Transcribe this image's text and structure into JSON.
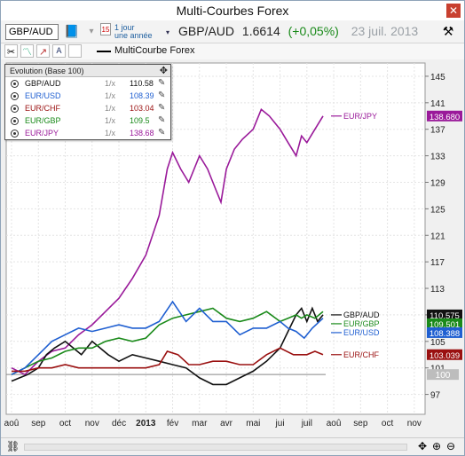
{
  "window": {
    "title": "Multi-Courbes Forex",
    "close_glyph": "✕"
  },
  "toolbar": {
    "symbol_value": "GBP/AUD",
    "period_day": "15",
    "period_line1": "1 jour",
    "period_line2": "une année",
    "quote_symbol": "GBP/AUD",
    "quote_price": "1.6614",
    "quote_change": "(+0,05%)",
    "quote_date": "23 juil. 2013"
  },
  "toolbar2": {
    "legend_label": "MultiCourbe Forex"
  },
  "evolution_panel": {
    "title": "Evolution (Base 100)",
    "rows": [
      {
        "name": "GBP/AUD",
        "scale": "1/x",
        "value": "110.58",
        "color": "#111111"
      },
      {
        "name": "EUR/USD",
        "scale": "1/x",
        "value": "108.39",
        "color": "#1f5fd1"
      },
      {
        "name": "EUR/CHF",
        "scale": "1/x",
        "value": "103.04",
        "color": "#9a1010"
      },
      {
        "name": "EUR/GBP",
        "scale": "1/x",
        "value": "109.5",
        "color": "#1a8a1a"
      },
      {
        "name": "EUR/JPY",
        "scale": "1/x",
        "value": "138.68",
        "color": "#9a1a9a"
      }
    ]
  },
  "chart_data": {
    "type": "line",
    "title": "",
    "xlabel": "",
    "ylabel": "",
    "ylim": [
      94,
      147
    ],
    "y_ticks": [
      "97",
      "101",
      "105",
      "109",
      "113",
      "117",
      "121",
      "125",
      "129",
      "133",
      "137",
      "141",
      "145"
    ],
    "x_ticks": [
      "aoû",
      "sep",
      "oct",
      "nov",
      "déc",
      "2013",
      "fév",
      "mar",
      "avr",
      "mai",
      "jui",
      "juil",
      "aoû",
      "sep",
      "oct",
      "nov"
    ],
    "x_bold_tick": "2013",
    "baseline": 100,
    "baseline_label": "100",
    "series": [
      {
        "name": "EUR/JPY",
        "color": "#9a1a9a",
        "end_label": "138.680",
        "label_text": "EUR/JPY",
        "points": [
          [
            0,
            101
          ],
          [
            0.5,
            100
          ],
          [
            1,
            102
          ],
          [
            1.5,
            103.5
          ],
          [
            2,
            104
          ],
          [
            2.5,
            106
          ],
          [
            3,
            107.5
          ],
          [
            3.5,
            109.5
          ],
          [
            4,
            111.5
          ],
          [
            4.5,
            114.5
          ],
          [
            5,
            118
          ],
          [
            5.5,
            124
          ],
          [
            5.8,
            131
          ],
          [
            6,
            133.5
          ],
          [
            6.3,
            131
          ],
          [
            6.6,
            129
          ],
          [
            7,
            133
          ],
          [
            7.3,
            131
          ],
          [
            7.6,
            128
          ],
          [
            7.8,
            126
          ],
          [
            8,
            131
          ],
          [
            8.3,
            134
          ],
          [
            8.6,
            135.5
          ],
          [
            9,
            137
          ],
          [
            9.3,
            140
          ],
          [
            9.6,
            139
          ],
          [
            10,
            137
          ],
          [
            10.3,
            135
          ],
          [
            10.6,
            133
          ],
          [
            10.8,
            136
          ],
          [
            11,
            135
          ],
          [
            11.3,
            137
          ],
          [
            11.6,
            139
          ]
        ]
      },
      {
        "name": "GBP/AUD",
        "color": "#111111",
        "end_label": "110.575",
        "label_text": "GBP/AUD",
        "points": [
          [
            0,
            99
          ],
          [
            0.3,
            99.5
          ],
          [
            0.6,
            100
          ],
          [
            1,
            101
          ],
          [
            1.3,
            103
          ],
          [
            1.6,
            104
          ],
          [
            2,
            105
          ],
          [
            2.3,
            104
          ],
          [
            2.6,
            103
          ],
          [
            3,
            105
          ],
          [
            3.3,
            104
          ],
          [
            3.6,
            103
          ],
          [
            4,
            102
          ],
          [
            4.5,
            103
          ],
          [
            5,
            102.5
          ],
          [
            5.5,
            102
          ],
          [
            6,
            101.5
          ],
          [
            6.5,
            101
          ],
          [
            7,
            99.5
          ],
          [
            7.5,
            98.5
          ],
          [
            8,
            98.5
          ],
          [
            8.5,
            99.5
          ],
          [
            9,
            100.5
          ],
          [
            9.5,
            102
          ],
          [
            10,
            104
          ],
          [
            10.3,
            106.5
          ],
          [
            10.6,
            109
          ],
          [
            10.8,
            110
          ],
          [
            11,
            108
          ],
          [
            11.2,
            110
          ],
          [
            11.4,
            108
          ],
          [
            11.6,
            109
          ]
        ]
      },
      {
        "name": "EUR/GBP",
        "color": "#1a8a1a",
        "end_label": "109.501",
        "label_text": "EUR/GBP",
        "points": [
          [
            0,
            100
          ],
          [
            0.5,
            101
          ],
          [
            1,
            102
          ],
          [
            1.5,
            102.5
          ],
          [
            2,
            103.5
          ],
          [
            2.5,
            104
          ],
          [
            3,
            104
          ],
          [
            3.5,
            105
          ],
          [
            4,
            105.5
          ],
          [
            4.5,
            105
          ],
          [
            5,
            105.5
          ],
          [
            5.5,
            107.5
          ],
          [
            6,
            108.5
          ],
          [
            6.5,
            109
          ],
          [
            7,
            109.5
          ],
          [
            7.5,
            110
          ],
          [
            8,
            108.5
          ],
          [
            8.5,
            108
          ],
          [
            9,
            108.5
          ],
          [
            9.5,
            109.5
          ],
          [
            10,
            108
          ],
          [
            10.3,
            108.5
          ],
          [
            10.6,
            109
          ],
          [
            10.8,
            108.5
          ],
          [
            11,
            109
          ],
          [
            11.3,
            108.5
          ],
          [
            11.6,
            109.5
          ]
        ]
      },
      {
        "name": "EUR/USD",
        "color": "#1f5fd1",
        "end_label": "108.388",
        "label_text": "EUR/USD",
        "points": [
          [
            0,
            100
          ],
          [
            0.5,
            101
          ],
          [
            1,
            103
          ],
          [
            1.5,
            105
          ],
          [
            2,
            106
          ],
          [
            2.5,
            107
          ],
          [
            3,
            106.5
          ],
          [
            3.5,
            107
          ],
          [
            4,
            107.5
          ],
          [
            4.5,
            107
          ],
          [
            5,
            107
          ],
          [
            5.5,
            108
          ],
          [
            6,
            111
          ],
          [
            6.5,
            108
          ],
          [
            7,
            110
          ],
          [
            7.5,
            108
          ],
          [
            8,
            108
          ],
          [
            8.5,
            106
          ],
          [
            9,
            107
          ],
          [
            9.5,
            107
          ],
          [
            10,
            108
          ],
          [
            10.3,
            107
          ],
          [
            10.6,
            106.5
          ],
          [
            10.9,
            105.5
          ],
          [
            11.2,
            107
          ],
          [
            11.6,
            108.5
          ]
        ]
      },
      {
        "name": "EUR/CHF",
        "color": "#9a1010",
        "end_label": "103.039",
        "label_text": "EUR/CHF",
        "points": [
          [
            0,
            100.5
          ],
          [
            0.5,
            100.5
          ],
          [
            1,
            101
          ],
          [
            1.5,
            101
          ],
          [
            2,
            101.5
          ],
          [
            2.5,
            101
          ],
          [
            3,
            101
          ],
          [
            3.5,
            101
          ],
          [
            4,
            101
          ],
          [
            4.5,
            101
          ],
          [
            5,
            101
          ],
          [
            5.5,
            101.5
          ],
          [
            5.8,
            103.5
          ],
          [
            6.2,
            103
          ],
          [
            6.6,
            101.5
          ],
          [
            7,
            101.5
          ],
          [
            7.5,
            102
          ],
          [
            8,
            102
          ],
          [
            8.5,
            101.5
          ],
          [
            9,
            101.5
          ],
          [
            9.5,
            103
          ],
          [
            10,
            104
          ],
          [
            10.5,
            103
          ],
          [
            11,
            103
          ],
          [
            11.3,
            103.5
          ],
          [
            11.6,
            103
          ]
        ]
      }
    ]
  }
}
